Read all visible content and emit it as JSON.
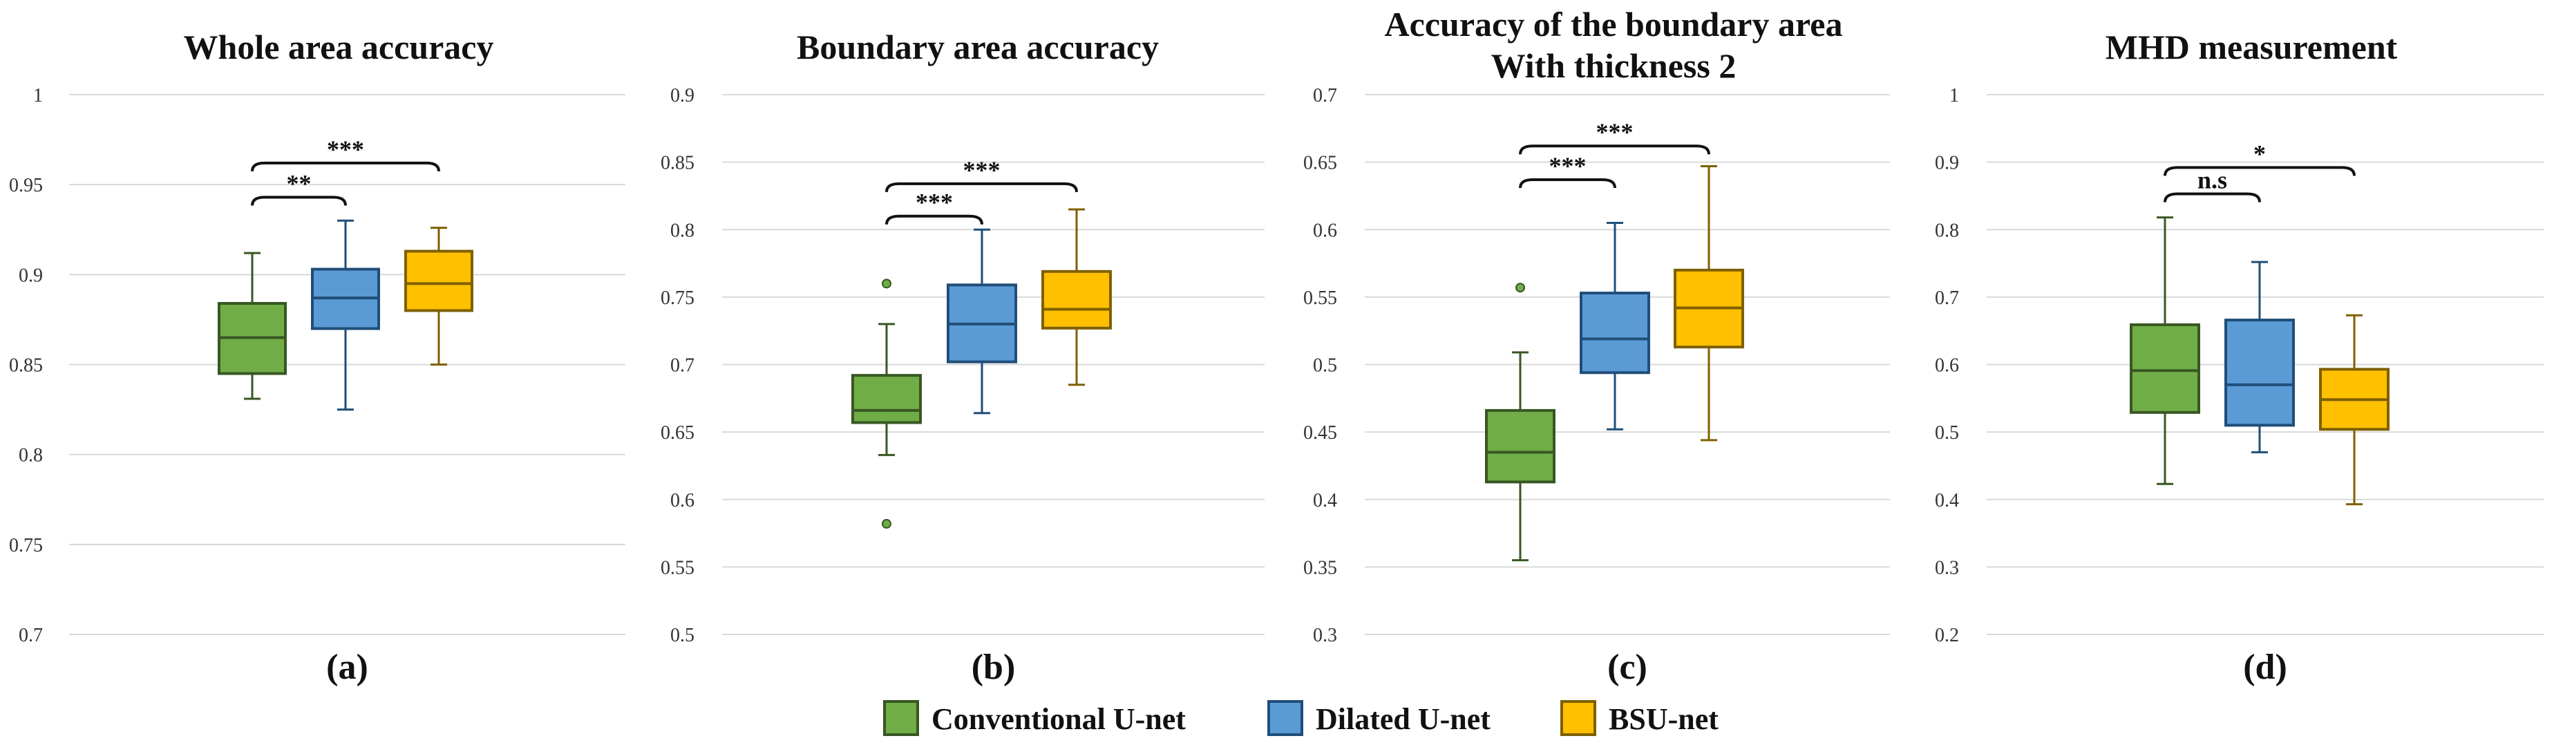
{
  "chart_data": [
    {
      "type": "box",
      "title_lines": [
        "Whole area accuracy"
      ],
      "panel_label": "(a)",
      "ylim": [
        0.7,
        1.0
      ],
      "yticks": [
        0.7,
        0.75,
        0.8,
        0.85,
        0.9,
        0.95,
        1.0
      ],
      "ytick_labels": [
        "0.7",
        "0.75",
        "0.8",
        "0.85",
        "0.9",
        "0.95",
        "1"
      ],
      "series": [
        {
          "name": "Conventional U-net",
          "min": 0.831,
          "q1": 0.845,
          "median": 0.865,
          "q3": 0.884,
          "max": 0.912,
          "outliers": []
        },
        {
          "name": "Dilated U-net",
          "min": 0.825,
          "q1": 0.87,
          "median": 0.887,
          "q3": 0.903,
          "max": 0.93,
          "outliers": []
        },
        {
          "name": "BSU-net",
          "min": 0.85,
          "q1": 0.88,
          "median": 0.895,
          "q3": 0.913,
          "max": 0.926,
          "outliers": []
        }
      ],
      "significance": [
        {
          "from": 0,
          "to": 1,
          "label": "**",
          "y": 0.943
        },
        {
          "from": 0,
          "to": 2,
          "label": "***",
          "y": 0.962
        }
      ]
    },
    {
      "type": "box",
      "title_lines": [
        "Boundary area accuracy"
      ],
      "panel_label": "(b)",
      "ylim": [
        0.5,
        0.9
      ],
      "yticks": [
        0.5,
        0.55,
        0.6,
        0.65,
        0.7,
        0.75,
        0.8,
        0.85,
        0.9
      ],
      "ytick_labels": [
        "0.5",
        "0.55",
        "0.6",
        "0.65",
        "0.7",
        "0.75",
        "0.8",
        "0.85",
        "0.9"
      ],
      "series": [
        {
          "name": "Conventional U-net",
          "min": 0.633,
          "q1": 0.657,
          "median": 0.666,
          "q3": 0.692,
          "max": 0.73,
          "outliers": [
            0.76,
            0.582
          ]
        },
        {
          "name": "Dilated U-net",
          "min": 0.664,
          "q1": 0.702,
          "median": 0.73,
          "q3": 0.759,
          "max": 0.8,
          "outliers": []
        },
        {
          "name": "BSU-net",
          "min": 0.685,
          "q1": 0.727,
          "median": 0.741,
          "q3": 0.769,
          "max": 0.815,
          "outliers": []
        }
      ],
      "significance": [
        {
          "from": 0,
          "to": 1,
          "label": "***",
          "y": 0.81
        },
        {
          "from": 0,
          "to": 2,
          "label": "***",
          "y": 0.834
        }
      ]
    },
    {
      "type": "box",
      "title_lines": [
        "Accuracy of the boundary area",
        "With thickness 2"
      ],
      "panel_label": "(c)",
      "ylim": [
        0.3,
        0.7
      ],
      "yticks": [
        0.3,
        0.35,
        0.4,
        0.45,
        0.5,
        0.55,
        0.6,
        0.65,
        0.7
      ],
      "ytick_labels": [
        "0.3",
        "0.35",
        "0.4",
        "0.45",
        "0.5",
        "0.55",
        "0.6",
        "0.65",
        "0.7"
      ],
      "series": [
        {
          "name": "Conventional U-net",
          "min": 0.355,
          "q1": 0.413,
          "median": 0.435,
          "q3": 0.466,
          "max": 0.509,
          "outliers": [
            0.557
          ]
        },
        {
          "name": "Dilated U-net",
          "min": 0.452,
          "q1": 0.494,
          "median": 0.519,
          "q3": 0.553,
          "max": 0.605,
          "outliers": []
        },
        {
          "name": "BSU-net",
          "min": 0.444,
          "q1": 0.513,
          "median": 0.542,
          "q3": 0.57,
          "max": 0.647,
          "outliers": []
        }
      ],
      "significance": [
        {
          "from": 0,
          "to": 1,
          "label": "***",
          "y": 0.637
        },
        {
          "from": 0,
          "to": 2,
          "label": "***",
          "y": 0.662
        }
      ]
    },
    {
      "type": "box",
      "title_lines": [
        "MHD measurement"
      ],
      "panel_label": "(d)",
      "ylim": [
        0.2,
        1.0
      ],
      "yticks": [
        0.2,
        0.3,
        0.4,
        0.5,
        0.6,
        0.7,
        0.8,
        0.9,
        1.0
      ],
      "ytick_labels": [
        "0.2",
        "0.3",
        "0.4",
        "0.5",
        "0.6",
        "0.7",
        "0.8",
        "0.9",
        "1"
      ],
      "series": [
        {
          "name": "Conventional U-net",
          "min": 0.423,
          "q1": 0.529,
          "median": 0.591,
          "q3": 0.659,
          "max": 0.818,
          "outliers": []
        },
        {
          "name": "Dilated U-net",
          "min": 0.47,
          "q1": 0.51,
          "median": 0.57,
          "q3": 0.666,
          "max": 0.752,
          "outliers": []
        },
        {
          "name": "BSU-net",
          "min": 0.393,
          "q1": 0.504,
          "median": 0.548,
          "q3": 0.593,
          "max": 0.673,
          "outliers": []
        }
      ],
      "significance": [
        {
          "from": 0,
          "to": 1,
          "label": "n.s",
          "y": 0.853
        },
        {
          "from": 0,
          "to": 2,
          "label": "*",
          "y": 0.892
        }
      ]
    }
  ],
  "legend": [
    {
      "label": "Conventional U-net",
      "fill": "#70ad47",
      "stroke": "#385723"
    },
    {
      "label": "Dilated U-net",
      "fill": "#5b9bd5",
      "stroke": "#1f4e79"
    },
    {
      "label": "BSU-net",
      "fill": "#ffc000",
      "stroke": "#7f6000"
    }
  ],
  "colors": {
    "grid": "#d9d9d9",
    "text": "#111111"
  }
}
